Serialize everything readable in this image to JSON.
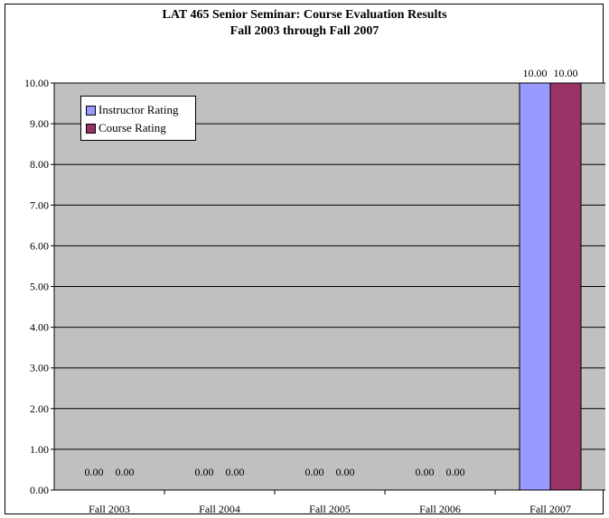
{
  "chart_data": {
    "type": "bar",
    "title": "LAT 465 Senior Seminar: Course Evaluation Results",
    "subtitle": "Fall 2003 through Fall 2007",
    "xlabel": "",
    "ylabel": "",
    "categories": [
      "Fall 2003",
      "Fall 2004",
      "Fall 2005",
      "Fall 2006",
      "Fall 2007"
    ],
    "series": [
      {
        "name": "Instructor Rating",
        "color": "#9999ff",
        "values": [
          0.0,
          0.0,
          0.0,
          0.0,
          10.0
        ]
      },
      {
        "name": "Course Rating",
        "color": "#993366",
        "values": [
          0.0,
          0.0,
          0.0,
          0.0,
          10.0
        ]
      }
    ],
    "ylim": [
      0,
      10
    ],
    "yticks": [
      "0.00",
      "1.00",
      "2.00",
      "3.00",
      "4.00",
      "5.00",
      "6.00",
      "7.00",
      "8.00",
      "9.00",
      "10.00"
    ],
    "grid": true,
    "plot_background": "#c0c0c0",
    "legend_placement": "top-left",
    "data_labels": true
  }
}
